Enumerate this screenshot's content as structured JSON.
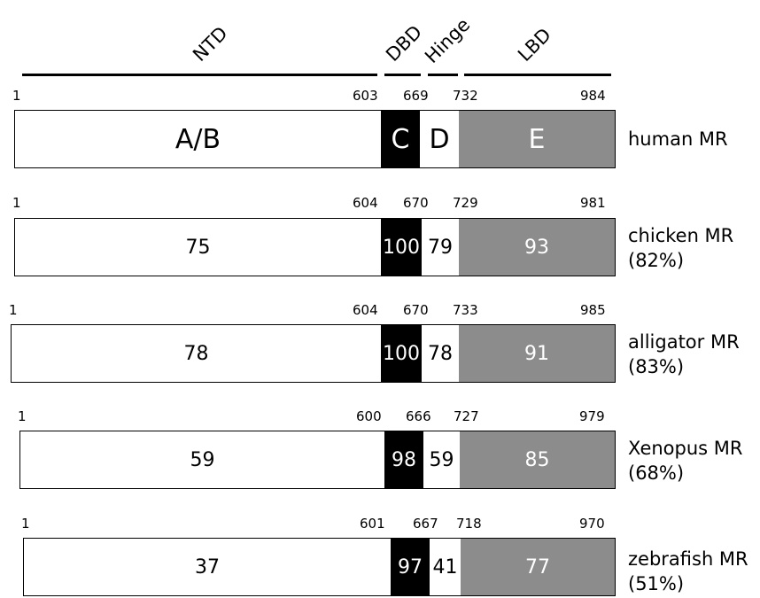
{
  "header": {
    "domains": [
      {
        "key": "ntd",
        "label": "NTD"
      },
      {
        "key": "dbd",
        "label": "DBD"
      },
      {
        "key": "hinge",
        "label": "Hinge"
      },
      {
        "key": "lbd",
        "label": "LBD"
      }
    ]
  },
  "receptors": [
    {
      "key": "human",
      "name": "human MR",
      "identity": "",
      "positions": {
        "start": "1",
        "c_start": "603",
        "d_start": "669",
        "e_start": "732",
        "end": "984"
      },
      "segments": {
        "ab": "A/B",
        "c": "C",
        "d": "D",
        "e": "E"
      }
    },
    {
      "key": "chicken",
      "name": "chicken MR",
      "identity": "(82%)",
      "positions": {
        "start": "1",
        "c_start": "604",
        "d_start": "670",
        "e_start": "729",
        "end": "981"
      },
      "segments": {
        "ab": "75",
        "c": "100",
        "d": "79",
        "e": "93"
      }
    },
    {
      "key": "alligator",
      "name": "alligator MR",
      "identity": "(83%)",
      "positions": {
        "start": "1",
        "c_start": "604",
        "d_start": "670",
        "e_start": "733",
        "end": "985"
      },
      "segments": {
        "ab": "78",
        "c": "100",
        "d": "78",
        "e": "91"
      }
    },
    {
      "key": "xenopus",
      "name": "Xenopus MR",
      "identity": "(68%)",
      "positions": {
        "start": "1",
        "c_start": "600",
        "d_start": "666",
        "e_start": "727",
        "end": "979"
      },
      "segments": {
        "ab": "59",
        "c": "98",
        "d": "59",
        "e": "85"
      }
    },
    {
      "key": "zebrafish",
      "name": "zebrafish MR",
      "identity": "(51%)",
      "positions": {
        "start": "1",
        "c_start": "601",
        "d_start": "667",
        "e_start": "718",
        "end": "970"
      },
      "segments": {
        "ab": "37",
        "c": "97",
        "d": "41",
        "e": "77"
      }
    }
  ],
  "colors": {
    "ab": "#ffffff",
    "c": "#000000",
    "d": "#ffffff",
    "e": "#8c8c8c"
  }
}
